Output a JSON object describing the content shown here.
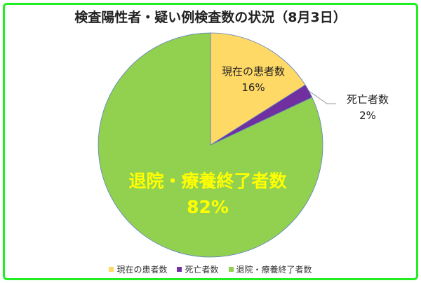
{
  "chart_data": {
    "type": "pie",
    "title": "検査陽性者・疑い例検査数の状況（8月3日）",
    "slices": [
      {
        "name": "現在の患者数",
        "value": 16,
        "label": "16%",
        "color": "#ffd966"
      },
      {
        "name": "死亡者数",
        "value": 2,
        "label": "2%",
        "color": "#7030a0"
      },
      {
        "name": "退院・療養終了者数",
        "value": 82,
        "label": "82%",
        "color": "#92d050"
      }
    ],
    "start_angle": "12 o'clock",
    "direction": "clockwise",
    "legend_position": "bottom",
    "colors": {
      "border": "#22ee22",
      "big_label": "#ffff00",
      "slice_edge": "#5b7fc4"
    }
  }
}
